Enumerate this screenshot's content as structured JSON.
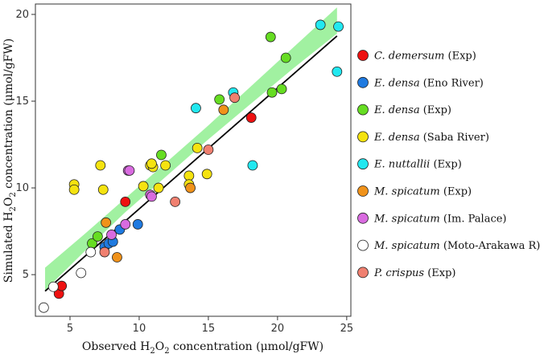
{
  "chart_data": {
    "type": "scatter",
    "xlabel": {
      "prefix": "Observed H",
      "sub1": "2",
      "mid": "O",
      "sub2": "2",
      "suffix": " concentration (μmol/gFW)"
    },
    "ylabel": {
      "prefix": "Simulated H",
      "sub1": "2",
      "mid": "O",
      "sub2": "2",
      "suffix": " concentration (μmol/gFW)"
    },
    "xlim": [
      2.5,
      25.3
    ],
    "ylim": [
      2.6,
      20.6
    ],
    "xticks": [
      5,
      10,
      15,
      20,
      25
    ],
    "yticks": [
      5,
      10,
      15,
      20
    ],
    "grid": false,
    "legend_position": "right",
    "regression": {
      "slope": 0.697,
      "intercept": 1.82,
      "x_range": [
        3.2,
        24.3
      ],
      "color": "#000000"
    },
    "confidence_band": {
      "x": [
        3.2,
        6,
        9,
        12,
        15,
        18,
        21,
        24.3
      ],
      "lower": [
        4.1,
        6.3,
        8.6,
        10.7,
        12.8,
        14.8,
        16.8,
        18.9
      ],
      "upper": [
        5.4,
        7.3,
        9.4,
        11.5,
        13.6,
        15.8,
        18.0,
        20.4
      ],
      "color": "#90ee90"
    },
    "series": [
      {
        "name": "C. demersum",
        "suffix": " (Exp)",
        "color": "#ee1111",
        "points": [
          [
            4.2,
            3.9
          ],
          [
            4.4,
            4.35
          ],
          [
            9.0,
            9.2
          ],
          [
            18.1,
            14.05
          ]
        ]
      },
      {
        "name": "E. densa",
        "suffix": " (Eno River)",
        "color": "#1f7ae0",
        "points": [
          [
            7.5,
            6.6
          ],
          [
            7.8,
            6.8
          ],
          [
            8.1,
            6.9
          ],
          [
            8.6,
            7.6
          ],
          [
            9.9,
            7.9
          ]
        ]
      },
      {
        "name": "E. densa",
        "suffix": " (Exp)",
        "color": "#66dd22",
        "points": [
          [
            6.6,
            6.8
          ],
          [
            7.0,
            7.2
          ],
          [
            11.6,
            11.9
          ],
          [
            15.8,
            15.1
          ],
          [
            19.6,
            15.5
          ],
          [
            20.3,
            15.7
          ],
          [
            19.5,
            18.7
          ],
          [
            20.6,
            17.5
          ]
        ]
      },
      {
        "name": "E. densa",
        "suffix": " (Saba River)",
        "color": "#f5e310",
        "points": [
          [
            5.3,
            10.2
          ],
          [
            5.3,
            9.9
          ],
          [
            7.2,
            11.3
          ],
          [
            7.4,
            9.9
          ],
          [
            10.3,
            10.1
          ],
          [
            10.8,
            11.3
          ],
          [
            11.0,
            11.2
          ],
          [
            10.9,
            11.4
          ],
          [
            11.9,
            11.3
          ],
          [
            11.4,
            10.0
          ],
          [
            13.6,
            10.7
          ],
          [
            13.6,
            10.2
          ],
          [
            14.2,
            12.3
          ],
          [
            14.9,
            10.8
          ]
        ]
      },
      {
        "name": "E. nuttallii",
        "suffix": " (Exp)",
        "color": "#22e8f0",
        "points": [
          [
            14.1,
            14.6
          ],
          [
            16.8,
            15.5
          ],
          [
            18.2,
            11.3
          ],
          [
            23.1,
            19.4
          ],
          [
            24.4,
            19.3
          ],
          [
            24.3,
            16.7
          ]
        ]
      },
      {
        "name": "M. spicatum",
        "suffix": " (Exp)",
        "color": "#f0921a",
        "points": [
          [
            7.6,
            8.0
          ],
          [
            8.4,
            6.0
          ],
          [
            13.7,
            10.0
          ],
          [
            16.1,
            14.5
          ]
        ]
      },
      {
        "name": "M. spicatum",
        "suffix": " (Im. Palace)",
        "color": "#d96be0",
        "points": [
          [
            8.0,
            7.3
          ],
          [
            9.0,
            7.9
          ],
          [
            9.2,
            11.0
          ],
          [
            9.3,
            11.0
          ],
          [
            10.8,
            9.6
          ],
          [
            10.9,
            9.5
          ]
        ]
      },
      {
        "name": "M. spicatum",
        "suffix": " (Moto-Arakawa R)",
        "color": "#ffffff",
        "points": [
          [
            3.1,
            3.1
          ],
          [
            3.8,
            4.3
          ],
          [
            5.8,
            5.1
          ],
          [
            6.5,
            6.3
          ]
        ]
      },
      {
        "name": "P. crispus",
        "suffix": " (Exp)",
        "color": "#f08070",
        "points": [
          [
            7.5,
            6.3
          ],
          [
            12.6,
            9.2
          ],
          [
            15.0,
            12.2
          ],
          [
            16.9,
            15.2
          ]
        ]
      }
    ]
  }
}
